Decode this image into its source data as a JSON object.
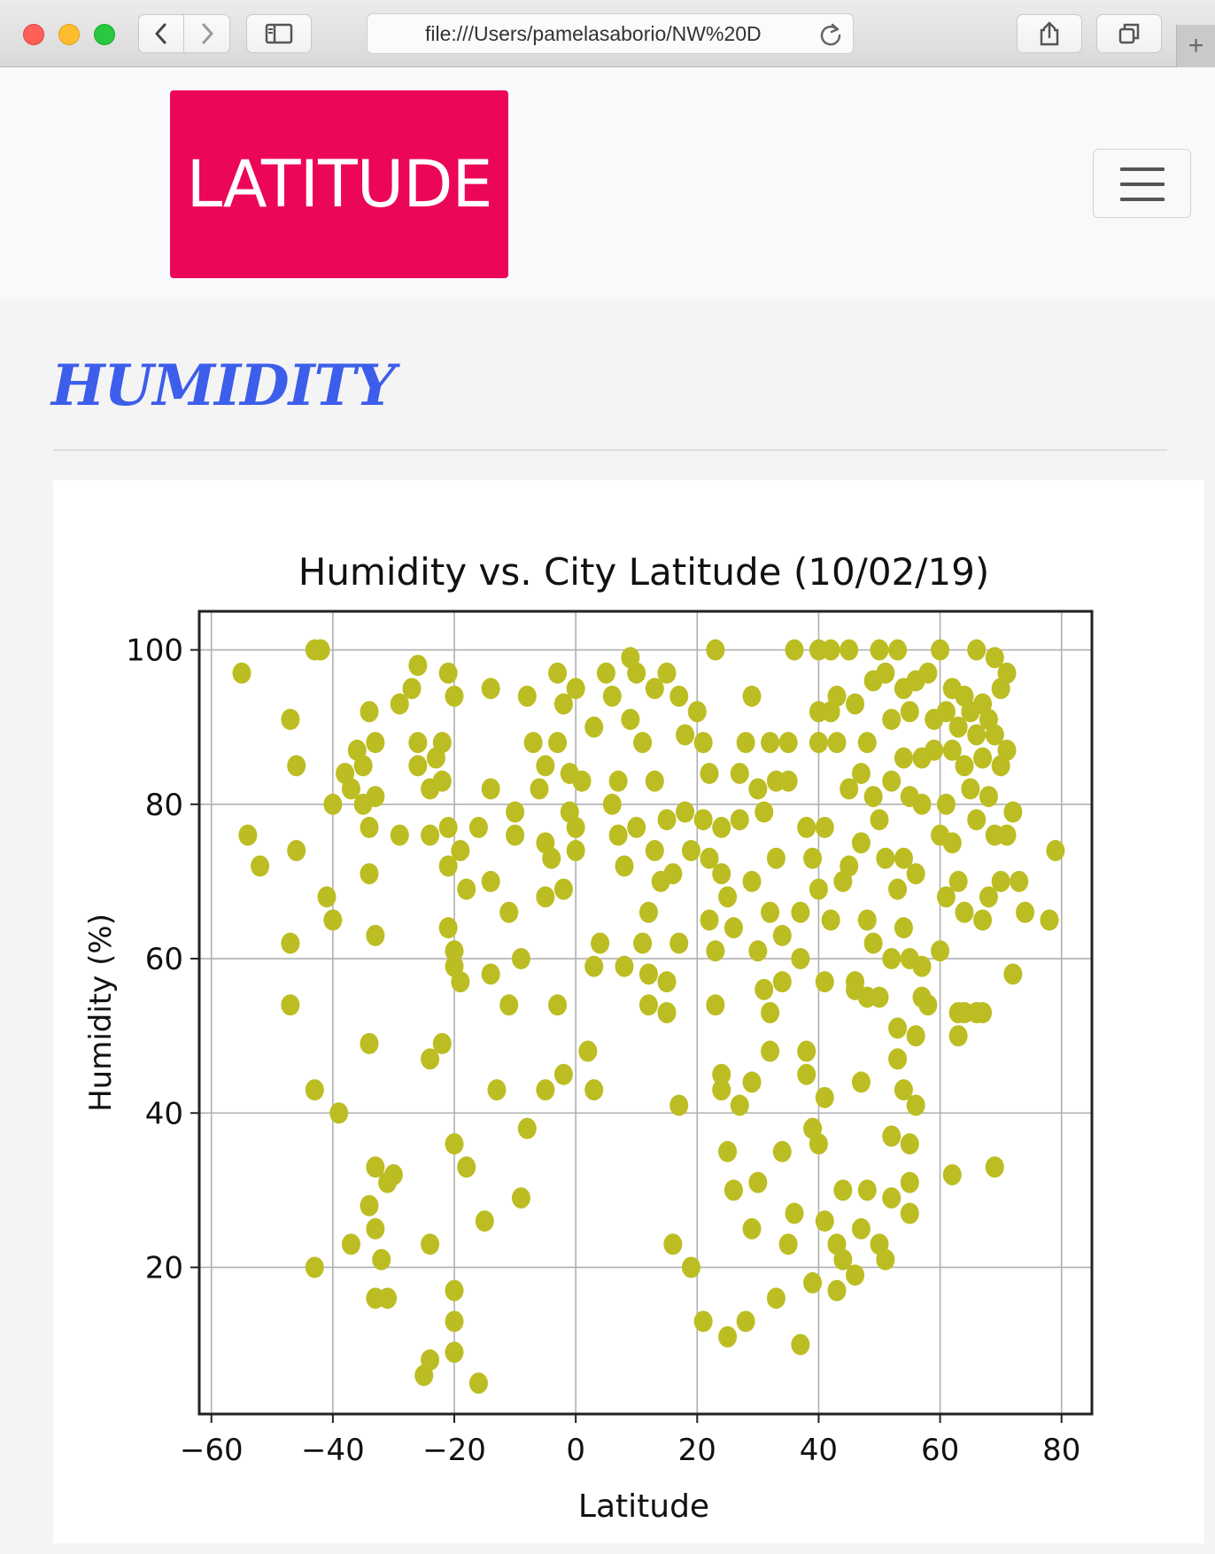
{
  "browser": {
    "url": "file:///Users/pamelasaborio/NW%20D"
  },
  "navbar": {
    "brand": "LATITUDE"
  },
  "main": {
    "heading": "HUMIDITY"
  },
  "colors": {
    "brand": "#ec0658",
    "heading": "#3d5eea",
    "marker": "#bcbd22"
  },
  "chart_data": {
    "type": "scatter",
    "title": "Humidity vs. City Latitude (10/02/19)",
    "xlabel": "Latitude",
    "ylabel": "Humidity (%)",
    "xlim": [
      -62,
      85
    ],
    "ylim": [
      1,
      105
    ],
    "xticks": [
      -60,
      -40,
      -20,
      0,
      20,
      40,
      60,
      80
    ],
    "yticks": [
      20,
      40,
      60,
      80,
      100
    ],
    "xtick_labels": [
      "−60",
      "−40",
      "−20",
      "0",
      "20",
      "40",
      "60",
      "80"
    ],
    "ytick_labels": [
      "20",
      "40",
      "60",
      "80",
      "100"
    ],
    "grid": true,
    "series": [
      {
        "color": "#bcbd22",
        "points": [
          [
            -55,
            97
          ],
          [
            -54,
            76
          ],
          [
            -52,
            72
          ],
          [
            -47,
            91
          ],
          [
            -46,
            85
          ],
          [
            -46,
            74
          ],
          [
            -47,
            62
          ],
          [
            -47,
            54
          ],
          [
            -43,
            100
          ],
          [
            -42,
            100
          ],
          [
            -43,
            43
          ],
          [
            -43,
            20
          ],
          [
            -41,
            68
          ],
          [
            -40,
            65
          ],
          [
            -40,
            80
          ],
          [
            -39,
            40
          ],
          [
            -38,
            84
          ],
          [
            -37,
            82
          ],
          [
            -36,
            87
          ],
          [
            -35,
            80
          ],
          [
            -35,
            85
          ],
          [
            -34,
            92
          ],
          [
            -34,
            71
          ],
          [
            -34,
            77
          ],
          [
            -33,
            81
          ],
          [
            -33,
            88
          ],
          [
            -34,
            49
          ],
          [
            -33,
            63
          ],
          [
            -33,
            33
          ],
          [
            -34,
            28
          ],
          [
            -33,
            25
          ],
          [
            -32,
            21
          ],
          [
            -33,
            16
          ],
          [
            -31,
            16
          ],
          [
            -37,
            23
          ],
          [
            -30,
            32
          ],
          [
            -31,
            31
          ],
          [
            -29,
            76
          ],
          [
            -29,
            93
          ],
          [
            -27,
            95
          ],
          [
            -26,
            98
          ],
          [
            -26,
            88
          ],
          [
            -26,
            85
          ],
          [
            -24,
            82
          ],
          [
            -23,
            86
          ],
          [
            -22,
            88
          ],
          [
            -21,
            97
          ],
          [
            -20,
            94
          ],
          [
            -22,
            83
          ],
          [
            -24,
            76
          ],
          [
            -21,
            77
          ],
          [
            -21,
            72
          ],
          [
            -19,
            74
          ],
          [
            -21,
            64
          ],
          [
            -20,
            61
          ],
          [
            -20,
            59
          ],
          [
            -19,
            57
          ],
          [
            -22,
            49
          ],
          [
            -24,
            47
          ],
          [
            -20,
            36
          ],
          [
            -18,
            33
          ],
          [
            -24,
            23
          ],
          [
            -20,
            17
          ],
          [
            -20,
            13
          ],
          [
            -20,
            9
          ],
          [
            -24,
            8
          ],
          [
            -25,
            6
          ],
          [
            -16,
            5
          ],
          [
            -15,
            26
          ],
          [
            -18,
            69
          ],
          [
            -16,
            77
          ],
          [
            -14,
            82
          ],
          [
            -14,
            95
          ],
          [
            -14,
            70
          ],
          [
            -14,
            58
          ],
          [
            -13,
            43
          ],
          [
            -11,
            54
          ],
          [
            -11,
            66
          ],
          [
            -10,
            76
          ],
          [
            -10,
            79
          ],
          [
            -9,
            29
          ],
          [
            -9,
            60
          ],
          [
            -8,
            38
          ],
          [
            -8,
            94
          ],
          [
            -7,
            88
          ],
          [
            -6,
            82
          ],
          [
            -5,
            75
          ],
          [
            -5,
            85
          ],
          [
            -5,
            68
          ],
          [
            -5,
            43
          ],
          [
            -4,
            73
          ],
          [
            -3,
            54
          ],
          [
            -3,
            97
          ],
          [
            -3,
            88
          ],
          [
            -2,
            93
          ],
          [
            -2,
            69
          ],
          [
            -2,
            45
          ],
          [
            -1,
            84
          ],
          [
            -1,
            79
          ],
          [
            0,
            95
          ],
          [
            0,
            77
          ],
          [
            0,
            74
          ],
          [
            1,
            83
          ],
          [
            2,
            48
          ],
          [
            3,
            90
          ],
          [
            3,
            59
          ],
          [
            3,
            43
          ],
          [
            4,
            62
          ],
          [
            5,
            97
          ],
          [
            6,
            94
          ],
          [
            6,
            80
          ],
          [
            7,
            83
          ],
          [
            7,
            76
          ],
          [
            8,
            72
          ],
          [
            8,
            59
          ],
          [
            9,
            99
          ],
          [
            9,
            91
          ],
          [
            10,
            97
          ],
          [
            10,
            77
          ],
          [
            11,
            88
          ],
          [
            11,
            62
          ],
          [
            12,
            66
          ],
          [
            12,
            58
          ],
          [
            12,
            54
          ],
          [
            13,
            95
          ],
          [
            13,
            83
          ],
          [
            13,
            74
          ],
          [
            14,
            70
          ],
          [
            15,
            97
          ],
          [
            15,
            78
          ],
          [
            15,
            53
          ],
          [
            15,
            57
          ],
          [
            16,
            23
          ],
          [
            16,
            71
          ],
          [
            17,
            94
          ],
          [
            17,
            62
          ],
          [
            17,
            41
          ],
          [
            18,
            89
          ],
          [
            18,
            79
          ],
          [
            19,
            74
          ],
          [
            19,
            20
          ],
          [
            20,
            92
          ],
          [
            21,
            88
          ],
          [
            21,
            78
          ],
          [
            21,
            13
          ],
          [
            22,
            84
          ],
          [
            22,
            65
          ],
          [
            22,
            73
          ],
          [
            23,
            100
          ],
          [
            23,
            61
          ],
          [
            23,
            54
          ],
          [
            24,
            77
          ],
          [
            24,
            71
          ],
          [
            24,
            45
          ],
          [
            24,
            43
          ],
          [
            25,
            68
          ],
          [
            25,
            35
          ],
          [
            25,
            11
          ],
          [
            26,
            64
          ],
          [
            26,
            30
          ],
          [
            27,
            78
          ],
          [
            27,
            84
          ],
          [
            27,
            41
          ],
          [
            28,
            88
          ],
          [
            28,
            13
          ],
          [
            29,
            94
          ],
          [
            29,
            70
          ],
          [
            29,
            44
          ],
          [
            29,
            25
          ],
          [
            30,
            82
          ],
          [
            30,
            31
          ],
          [
            30,
            61
          ],
          [
            31,
            56
          ],
          [
            31,
            79
          ],
          [
            32,
            88
          ],
          [
            32,
            66
          ],
          [
            32,
            53
          ],
          [
            32,
            48
          ],
          [
            33,
            73
          ],
          [
            33,
            16
          ],
          [
            33,
            83
          ],
          [
            34,
            35
          ],
          [
            34,
            57
          ],
          [
            34,
            63
          ],
          [
            35,
            88
          ],
          [
            35,
            83
          ],
          [
            35,
            23
          ],
          [
            36,
            100
          ],
          [
            36,
            27
          ],
          [
            37,
            10
          ],
          [
            37,
            66
          ],
          [
            37,
            60
          ],
          [
            38,
            77
          ],
          [
            38,
            48
          ],
          [
            38,
            45
          ],
          [
            39,
            73
          ],
          [
            39,
            18
          ],
          [
            39,
            38
          ],
          [
            40,
            69
          ],
          [
            40,
            92
          ],
          [
            40,
            100
          ],
          [
            40,
            88
          ],
          [
            40,
            36
          ],
          [
            41,
            77
          ],
          [
            41,
            57
          ],
          [
            41,
            26
          ],
          [
            41,
            42
          ],
          [
            42,
            100
          ],
          [
            42,
            92
          ],
          [
            42,
            65
          ],
          [
            43,
            88
          ],
          [
            43,
            23
          ],
          [
            43,
            17
          ],
          [
            43,
            94
          ],
          [
            44,
            30
          ],
          [
            44,
            21
          ],
          [
            44,
            70
          ],
          [
            45,
            100
          ],
          [
            45,
            82
          ],
          [
            45,
            72
          ],
          [
            46,
            93
          ],
          [
            46,
            57
          ],
          [
            46,
            19
          ],
          [
            46,
            56
          ],
          [
            47,
            75
          ],
          [
            47,
            84
          ],
          [
            47,
            44
          ],
          [
            47,
            25
          ],
          [
            48,
            88
          ],
          [
            48,
            65
          ],
          [
            48,
            55
          ],
          [
            48,
            30
          ],
          [
            49,
            96
          ],
          [
            49,
            81
          ],
          [
            49,
            62
          ],
          [
            50,
            100
          ],
          [
            50,
            78
          ],
          [
            50,
            55
          ],
          [
            50,
            23
          ],
          [
            51,
            97
          ],
          [
            51,
            73
          ],
          [
            51,
            21
          ],
          [
            52,
            91
          ],
          [
            52,
            83
          ],
          [
            52,
            60
          ],
          [
            52,
            37
          ],
          [
            52,
            29
          ],
          [
            53,
            100
          ],
          [
            53,
            69
          ],
          [
            53,
            51
          ],
          [
            53,
            47
          ],
          [
            54,
            95
          ],
          [
            54,
            86
          ],
          [
            54,
            73
          ],
          [
            54,
            64
          ],
          [
            54,
            43
          ],
          [
            55,
            92
          ],
          [
            55,
            81
          ],
          [
            55,
            60
          ],
          [
            55,
            36
          ],
          [
            55,
            31
          ],
          [
            55,
            27
          ],
          [
            56,
            96
          ],
          [
            56,
            71
          ],
          [
            56,
            50
          ],
          [
            56,
            41
          ],
          [
            57,
            86
          ],
          [
            57,
            80
          ],
          [
            57,
            59
          ],
          [
            57,
            55
          ],
          [
            58,
            97
          ],
          [
            58,
            54
          ],
          [
            59,
            91
          ],
          [
            59,
            87
          ],
          [
            60,
            100
          ],
          [
            60,
            76
          ],
          [
            60,
            61
          ],
          [
            61,
            92
          ],
          [
            61,
            80
          ],
          [
            61,
            68
          ],
          [
            62,
            95
          ],
          [
            62,
            87
          ],
          [
            62,
            75
          ],
          [
            62,
            32
          ],
          [
            63,
            90
          ],
          [
            63,
            70
          ],
          [
            63,
            53
          ],
          [
            63,
            50
          ],
          [
            64,
            94
          ],
          [
            64,
            85
          ],
          [
            64,
            66
          ],
          [
            64,
            53
          ],
          [
            65,
            92
          ],
          [
            65,
            82
          ],
          [
            66,
            100
          ],
          [
            66,
            89
          ],
          [
            66,
            78
          ],
          [
            66,
            53
          ],
          [
            67,
            93
          ],
          [
            67,
            86
          ],
          [
            67,
            65
          ],
          [
            67,
            53
          ],
          [
            68,
            91
          ],
          [
            68,
            81
          ],
          [
            68,
            68
          ],
          [
            69,
            99
          ],
          [
            69,
            89
          ],
          [
            69,
            76
          ],
          [
            69,
            33
          ],
          [
            70,
            95
          ],
          [
            70,
            85
          ],
          [
            70,
            70
          ],
          [
            71,
            97
          ],
          [
            71,
            87
          ],
          [
            71,
            76
          ],
          [
            72,
            79
          ],
          [
            72,
            58
          ],
          [
            73,
            70
          ],
          [
            74,
            66
          ],
          [
            78,
            65
          ],
          [
            79,
            74
          ]
        ]
      }
    ]
  }
}
